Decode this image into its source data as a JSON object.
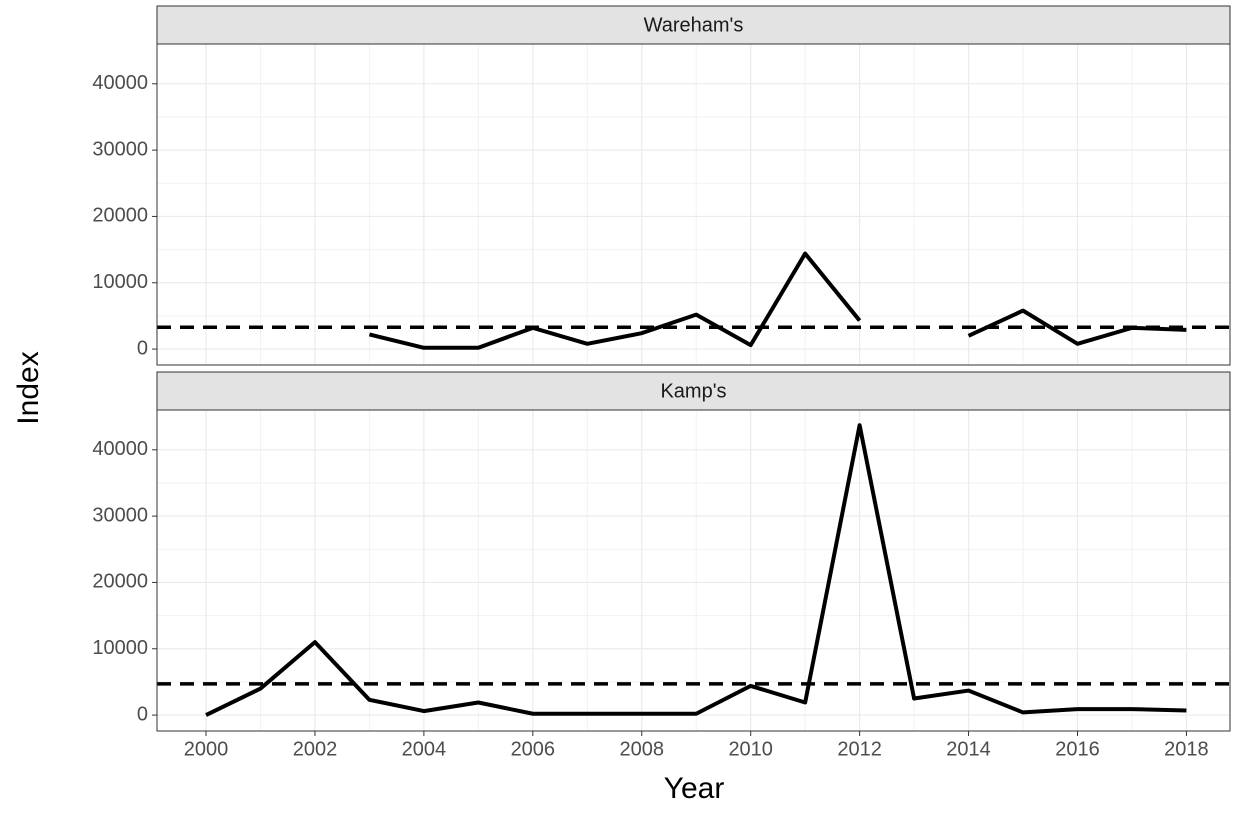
{
  "chart_data": [
    {
      "type": "line",
      "title": "Wareham's",
      "ylabel": "Index",
      "x": [
        2000,
        2001,
        2002,
        2003,
        2004,
        2005,
        2006,
        2007,
        2008,
        2009,
        2010,
        2011,
        2012,
        2013,
        2014,
        2015,
        2016,
        2017,
        2018
      ],
      "series": [
        {
          "color": "#000000",
          "values": [
            null,
            null,
            null,
            2200,
            200,
            200,
            3200,
            800,
            2400,
            5200,
            600,
            14400,
            4300,
            null,
            2000,
            5800,
            800,
            3200,
            2900
          ]
        }
      ],
      "hline": 3300,
      "xlim": [
        1999.1,
        2018.8
      ],
      "xticks": [
        2000,
        2002,
        2004,
        2006,
        2008,
        2010,
        2012,
        2014,
        2016,
        2018
      ],
      "ylim": [
        -2400,
        46000
      ],
      "yticks": [
        0,
        10000,
        20000,
        30000,
        40000
      ],
      "grid": true
    },
    {
      "type": "line",
      "title": "Kamp's",
      "xlabel": "Year",
      "x": [
        2000,
        2001,
        2002,
        2003,
        2004,
        2005,
        2006,
        2007,
        2008,
        2009,
        2010,
        2011,
        2012,
        2013,
        2014,
        2015,
        2016,
        2017,
        2018
      ],
      "series": [
        {
          "color": "#000000",
          "values": [
            0,
            4000,
            11000,
            2300,
            600,
            1900,
            200,
            200,
            200,
            200,
            4400,
            1900,
            43700,
            2500,
            3700,
            400,
            900,
            900,
            700
          ]
        }
      ],
      "hline": 4700,
      "xlim": [
        1999.1,
        2018.8
      ],
      "xticks": [
        2000,
        2002,
        2004,
        2006,
        2008,
        2010,
        2012,
        2014,
        2016,
        2018
      ],
      "ylim": [
        -2400,
        46000
      ],
      "yticks": [
        0,
        10000,
        20000,
        30000,
        40000
      ],
      "grid": true
    }
  ]
}
